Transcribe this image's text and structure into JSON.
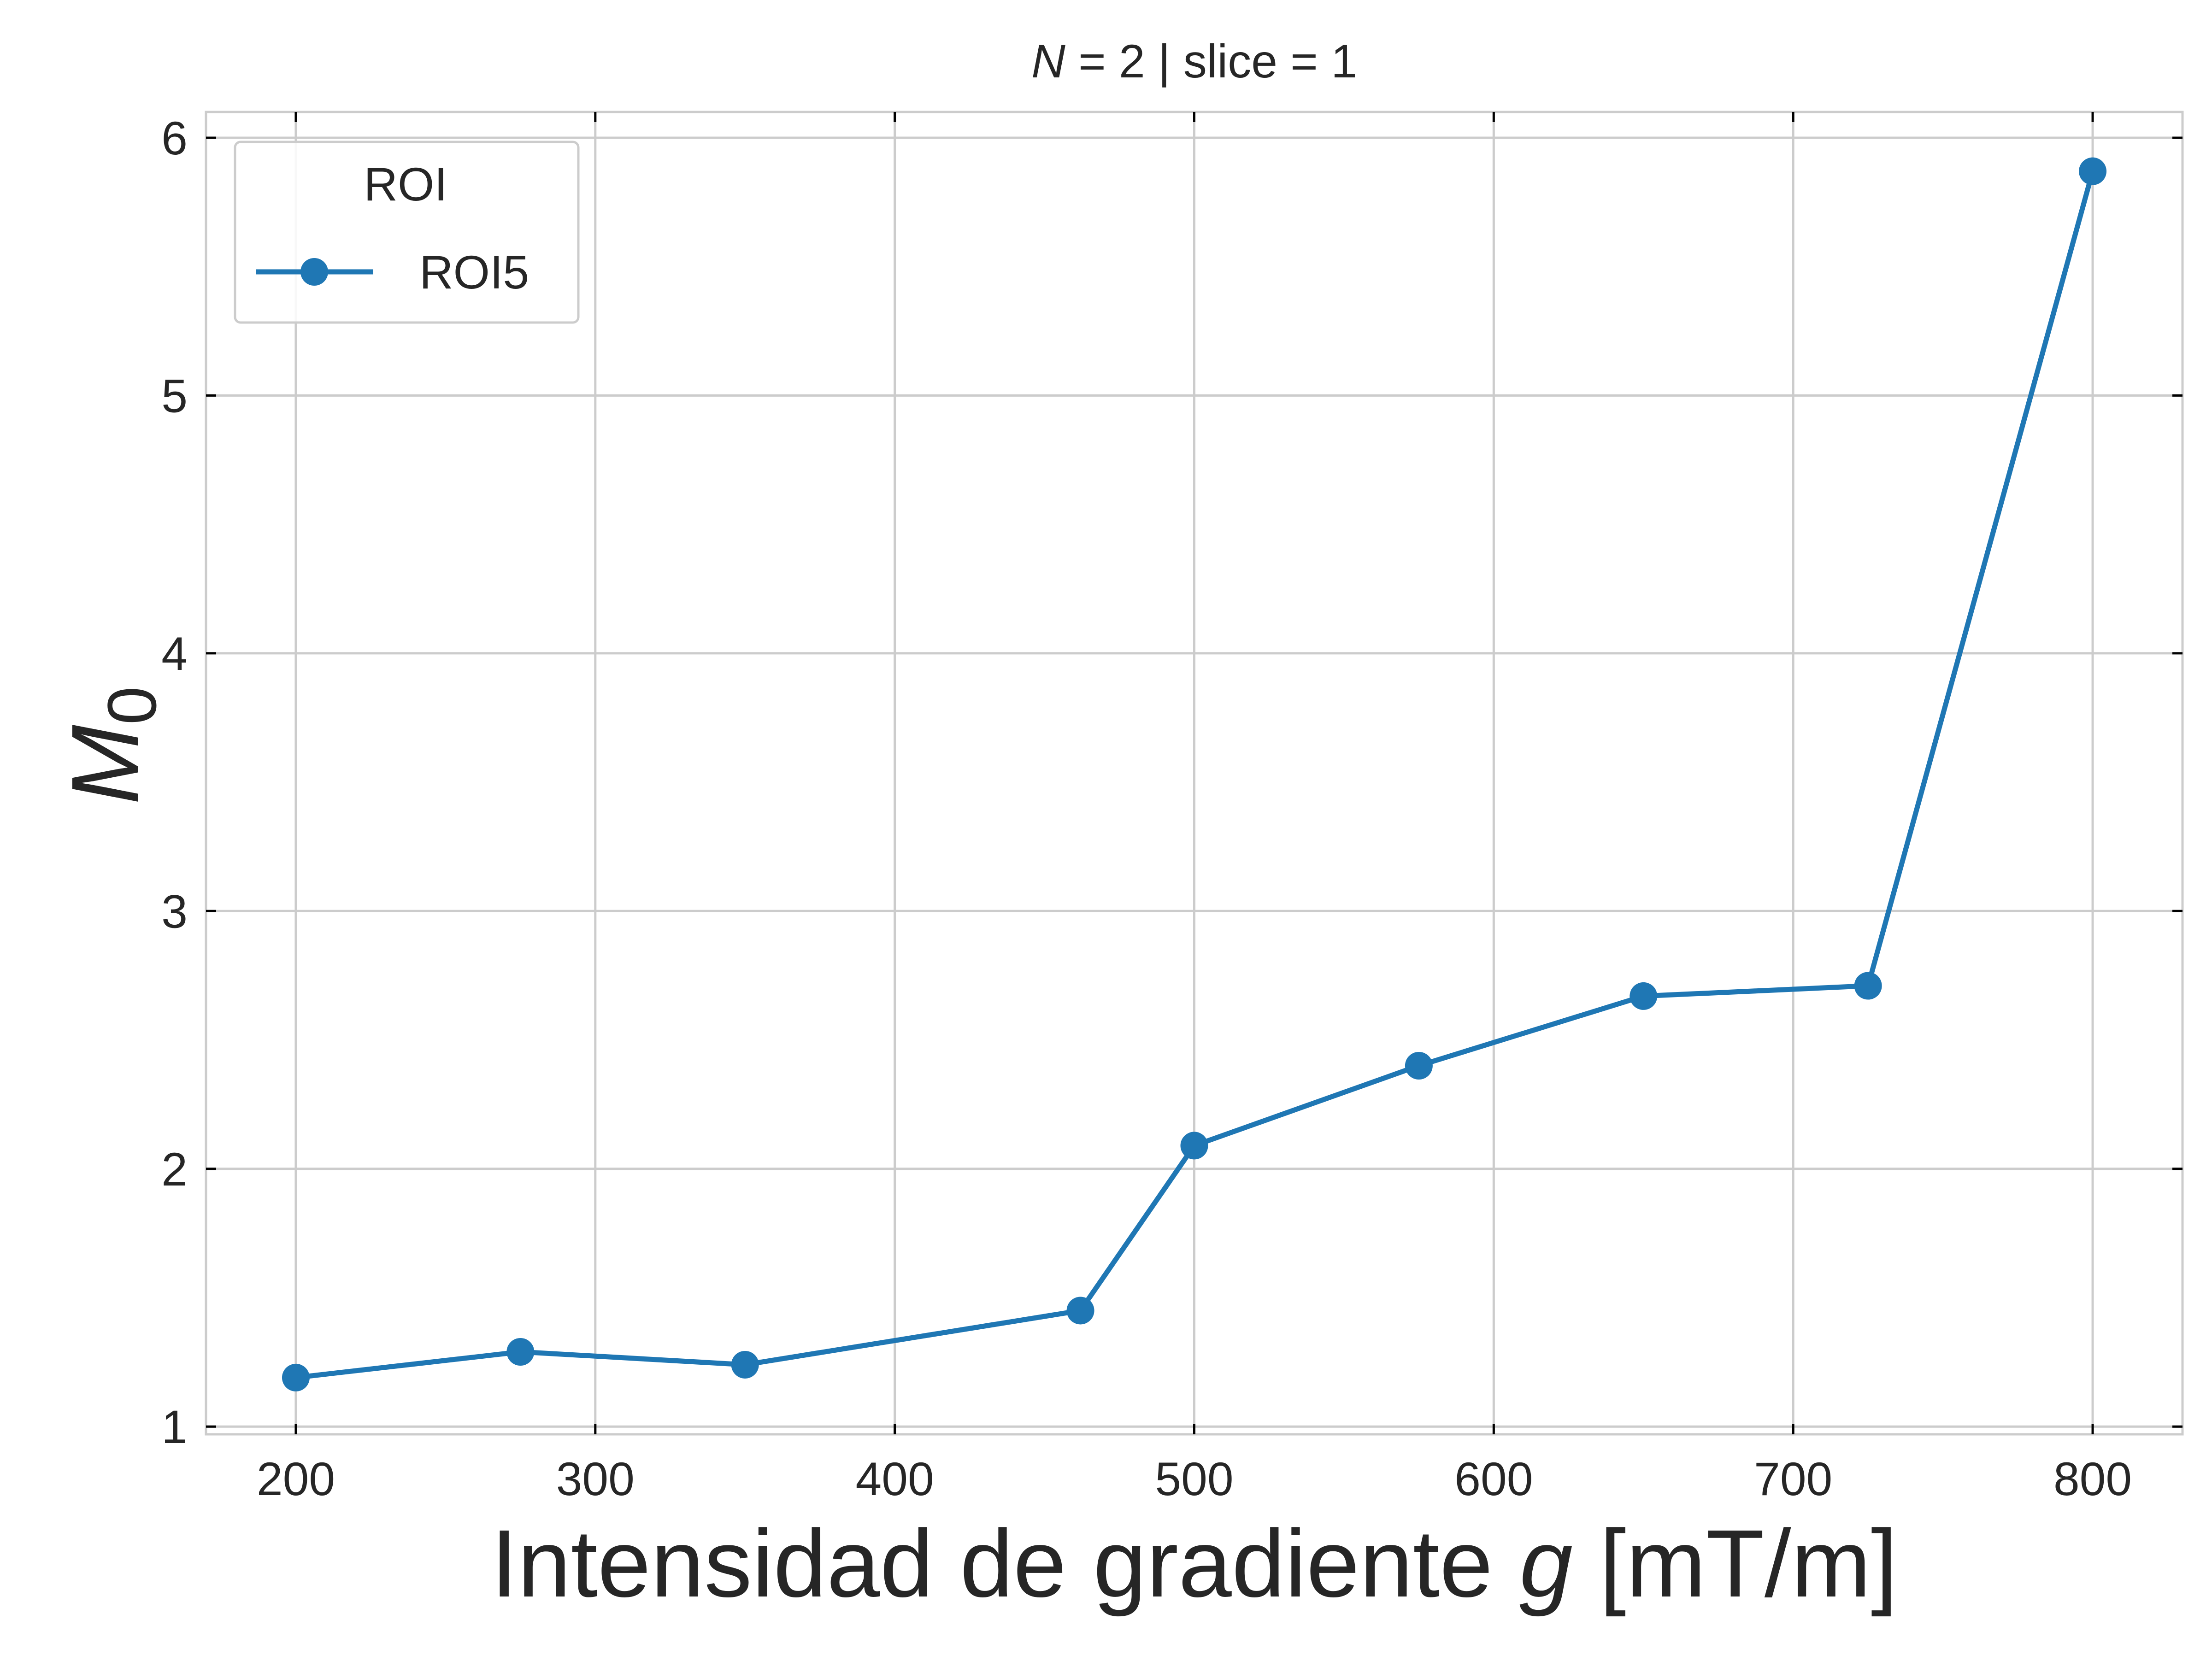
{
  "chart_data": {
    "type": "line",
    "title_prefix": "N",
    "title_rest": " = 2 | slice = 1",
    "xlabel_prefix": "Intensidad de gradiente ",
    "xlabel_var": "g",
    "xlabel_suffix": " [mT/m]",
    "ylabel_main": "M",
    "ylabel_sub": "0",
    "xlim": [
      170,
      830
    ],
    "ylim": [
      0.97,
      6.1
    ],
    "xticks": [
      200,
      300,
      400,
      500,
      600,
      700,
      800
    ],
    "yticks": [
      1,
      2,
      3,
      4,
      5,
      6
    ],
    "grid": true,
    "legend": {
      "title": "ROI",
      "placement": "top-left"
    },
    "series": [
      {
        "name": "ROI5",
        "color": "#1f77b4",
        "marker": "circle",
        "x": [
          200,
          275,
          350,
          462,
          500,
          575,
          650,
          725,
          800
        ],
        "y": [
          1.19,
          1.29,
          1.24,
          1.45,
          2.09,
          2.4,
          2.67,
          2.71,
          5.87
        ]
      }
    ]
  }
}
